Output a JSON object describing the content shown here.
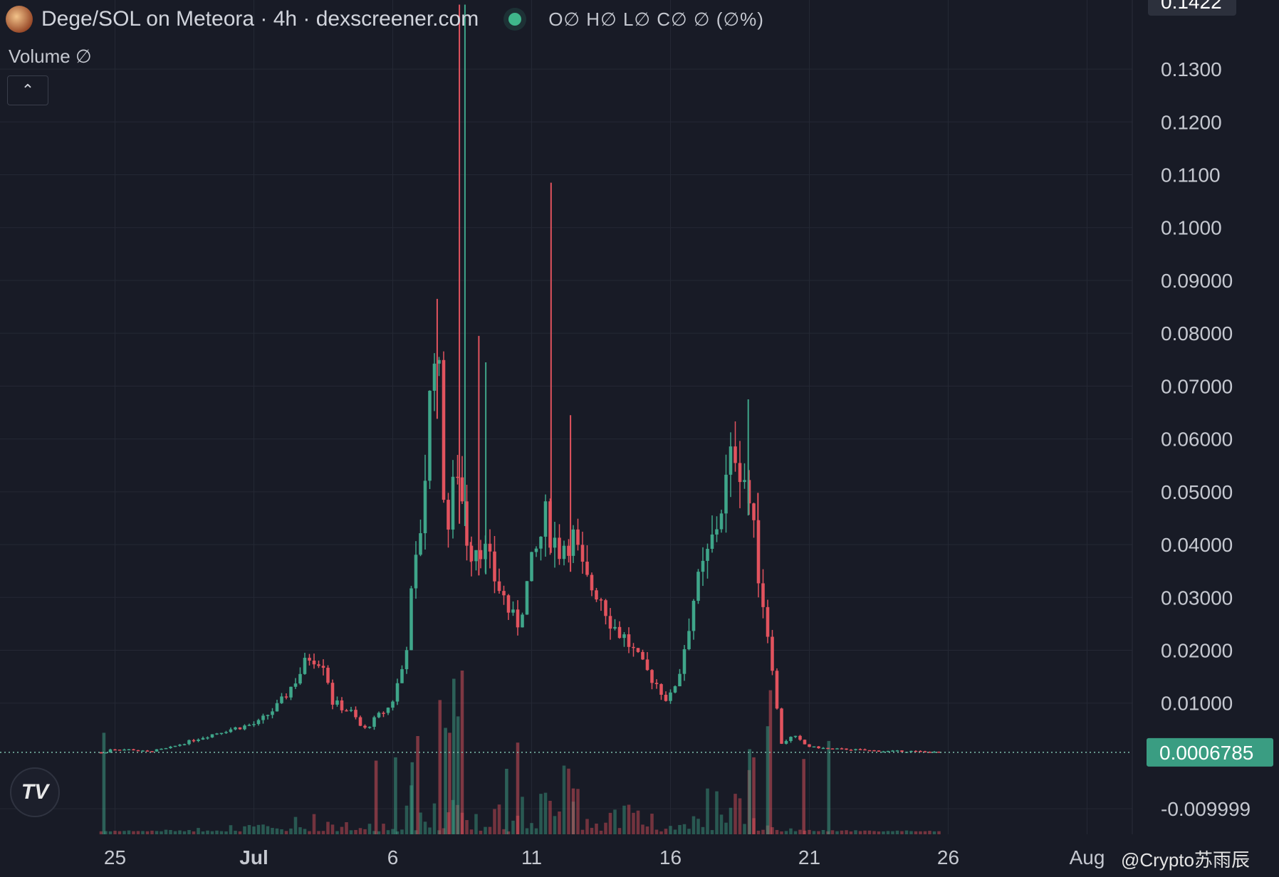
{
  "header": {
    "title": "Dege/SOL on Meteora · 4h · dexscreener.com",
    "ohlc": "O∅ H∅ L∅ C∅ ∅ (∅%)"
  },
  "volume": {
    "label": "Volume ∅"
  },
  "controls": {
    "collapse_icon": "chevron-up-icon"
  },
  "logo": {
    "icon": "tradingview-logo-icon"
  },
  "watermark": {
    "text": "@Crypto苏雨辰"
  },
  "colors": {
    "up": "#3fa68a",
    "down": "#e2535e",
    "background": "#181b26",
    "price_badge": "#3a9d82"
  },
  "chart_data": {
    "type": "candlestick",
    "x_ticks": [
      "25",
      "Jul",
      "6",
      "11",
      "16",
      "21",
      "26",
      "Aug"
    ],
    "y_ticks": [
      "0.1300",
      "0.1200",
      "0.1100",
      "0.1000",
      "0.09000",
      "0.08000",
      "0.07000",
      "0.06000",
      "0.05000",
      "0.04000",
      "0.03000",
      "0.02000",
      "0.01000",
      "-0.009999"
    ],
    "ylim": [
      -0.0155,
      0.142
    ],
    "top_badge": "0.1422",
    "last_price": "0.0006785",
    "volume_visible": true,
    "price_path": [
      [
        0.5,
        0.0013
      ],
      [
        1.3,
        0.0012
      ],
      [
        1.8,
        0.0008
      ],
      [
        2.6,
        0.0015
      ],
      [
        3.6,
        0.0032
      ],
      [
        4.6,
        0.0048
      ],
      [
        5.8,
        0.0062
      ],
      [
        6.6,
        0.0098
      ],
      [
        7.3,
        0.0155
      ],
      [
        7.7,
        0.0192
      ],
      [
        8.2,
        0.0178
      ],
      [
        8.5,
        0.0102
      ],
      [
        9.2,
        0.0082
      ],
      [
        9.6,
        0.0048
      ],
      [
        10.2,
        0.0078
      ],
      [
        10.6,
        0.0095
      ],
      [
        11.1,
        0.0182
      ],
      [
        11.3,
        0.0285
      ],
      [
        11.6,
        0.0395
      ],
      [
        11.9,
        0.0582
      ],
      [
        12.2,
        0.0835
      ],
      [
        12.6,
        0.0412
      ],
      [
        13.0,
        0.0552
      ],
      [
        13.4,
        0.0392
      ],
      [
        13.8,
        0.0412
      ],
      [
        14.2,
        0.0352
      ],
      [
        14.6,
        0.0308
      ],
      [
        15.1,
        0.0242
      ],
      [
        15.6,
        0.0342
      ],
      [
        16.2,
        0.0452
      ],
      [
        16.6,
        0.0392
      ],
      [
        17.1,
        0.0422
      ],
      [
        17.6,
        0.0328
      ],
      [
        18.1,
        0.0312
      ],
      [
        18.6,
        0.0248
      ],
      [
        19.1,
        0.0218
      ],
      [
        19.6,
        0.0172
      ],
      [
        20.1,
        0.0142
      ],
      [
        20.6,
        0.0102
      ],
      [
        21.0,
        0.0162
      ],
      [
        21.5,
        0.0298
      ],
      [
        22.1,
        0.0392
      ],
      [
        22.6,
        0.0498
      ],
      [
        23.0,
        0.0588
      ],
      [
        23.4,
        0.0518
      ],
      [
        23.8,
        0.0362
      ],
      [
        24.1,
        0.0258
      ],
      [
        24.4,
        0.0152
      ],
      [
        24.6,
        0.0022
      ],
      [
        25.1,
        0.0038
      ],
      [
        25.6,
        0.0018
      ],
      [
        26.3,
        0.0014
      ],
      [
        27.3,
        0.0012
      ],
      [
        28.3,
        0.0009
      ],
      [
        29.3,
        0.0009
      ],
      [
        30.2,
        0.00068
      ]
    ],
    "wick_spikes": [
      [
        12.1,
        0.0865
      ],
      [
        12.9,
        0.1422
      ],
      [
        13.1,
        0.1422
      ],
      [
        13.3,
        0.0405
      ],
      [
        13.6,
        0.0795
      ],
      [
        13.85,
        0.0745
      ],
      [
        16.2,
        0.1085
      ],
      [
        16.9,
        0.0645
      ],
      [
        23.3,
        0.0675
      ],
      [
        23.65,
        0.0498
      ]
    ],
    "volume_spikes": [
      [
        0.1,
        0.62
      ],
      [
        9.9,
        0.45
      ],
      [
        10.6,
        0.47
      ],
      [
        13.0,
        1.0
      ],
      [
        12.7,
        0.95
      ],
      [
        12.2,
        0.82
      ],
      [
        11.2,
        0.44
      ],
      [
        11.4,
        0.6
      ],
      [
        12.4,
        0.65
      ],
      [
        12.55,
        0.62
      ],
      [
        12.85,
        0.72
      ],
      [
        24.1,
        0.88
      ],
      [
        24.0,
        0.66
      ],
      [
        23.5,
        0.47
      ],
      [
        23.35,
        0.52
      ],
      [
        25.3,
        0.46
      ],
      [
        26.2,
        0.57
      ],
      [
        15.0,
        0.56
      ],
      [
        14.6,
        0.4
      ],
      [
        17.0,
        0.28
      ]
    ]
  }
}
